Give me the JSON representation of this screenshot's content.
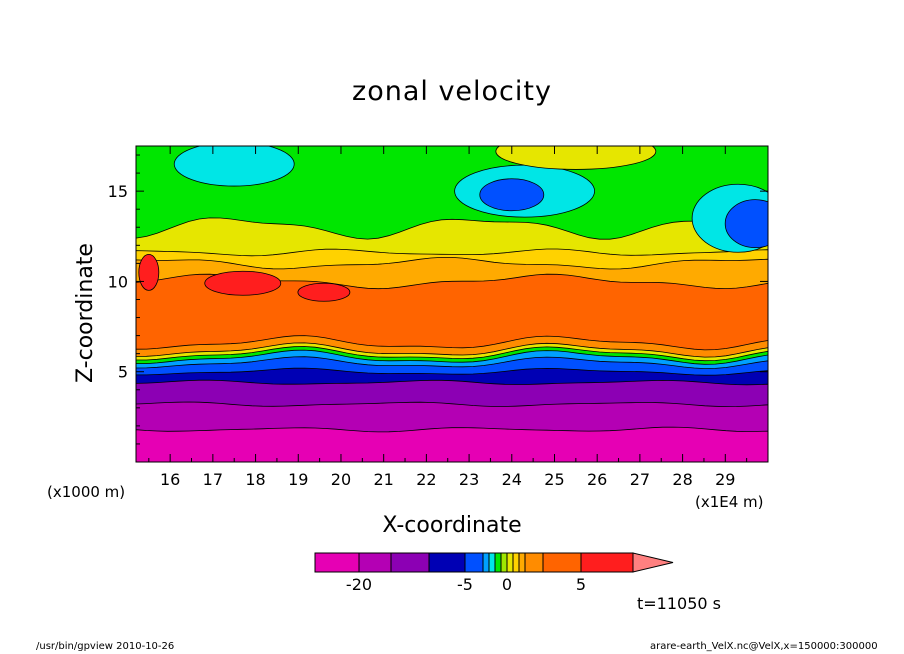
{
  "chart_data": {
    "type": "heatmap",
    "title": "zonal velocity",
    "xlabel": "X-coordinate",
    "ylabel": "Z-coordinate",
    "x_unit_label": "(x1E4 m)",
    "y_unit_label": "(x1000 m)",
    "xlim": [
      15.2,
      30
    ],
    "ylim": [
      0,
      17.5
    ],
    "x_ticks": [
      "16",
      "17",
      "18",
      "19",
      "20",
      "21",
      "22",
      "23",
      "24",
      "25",
      "26",
      "27",
      "28",
      "29"
    ],
    "y_ticks": [
      "5",
      "10",
      "15"
    ],
    "colorbar": {
      "levels": [
        -25,
        -20,
        -15,
        -10,
        -5,
        -4,
        -3,
        -2,
        -1,
        0,
        1,
        2,
        3,
        4,
        5,
        10,
        15,
        20
      ],
      "colors": [
        "#e600b4",
        "#b400b4",
        "#8c00b4",
        "#0000b4",
        "#0050ff",
        "#00a0ff",
        "#00e6e6",
        "#00e600",
        "#a0e600",
        "#e6e600",
        "#ffd200",
        "#ffaa00",
        "#ff8c00",
        "#ff6400",
        "#ff1e1e"
      ],
      "tick_labels": [
        "-20",
        "-5",
        "0",
        "5"
      ],
      "extend_color": "#ff8080"
    },
    "approximate_field_bands": [
      {
        "z_range": [
          0,
          2
        ],
        "level_range": [
          -25,
          -20
        ],
        "color": "#e600b4"
      },
      {
        "z_range": [
          2,
          3.5
        ],
        "level_range": [
          -20,
          -15
        ],
        "color": "#b400b4"
      },
      {
        "z_range": [
          3.5,
          4.5
        ],
        "level_range": [
          -15,
          -10
        ],
        "color": "#8c00b4"
      },
      {
        "z_range": [
          4.5,
          5.5
        ],
        "level_range": [
          -10,
          -5
        ],
        "color": "#0000b4"
      },
      {
        "z_range": [
          5.5,
          6.5
        ],
        "level_range": [
          -5,
          0
        ],
        "color": "#00a0ff"
      },
      {
        "z_range": [
          6.5,
          11
        ],
        "level_range": [
          5,
          15
        ],
        "color": "#ff6400"
      },
      {
        "z_range": [
          11,
          13
        ],
        "level_range": [
          0,
          3
        ],
        "color": "#e6e600"
      },
      {
        "z_range": [
          13,
          17.5
        ],
        "level_range": [
          -2,
          -1
        ],
        "color": "#00e600"
      }
    ]
  },
  "annotations": {
    "time": "t=11050 s",
    "footer_left": "/usr/bin/gpview   2010-10-26",
    "footer_right": "arare-earth_VelX.nc@VelX,x=150000:300000"
  }
}
